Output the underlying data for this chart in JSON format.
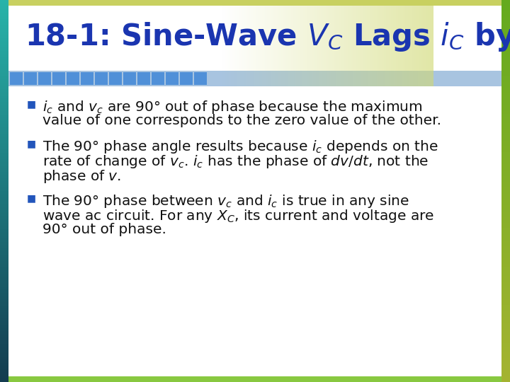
{
  "title_color": "#1a35b0",
  "title_fontsize": 30,
  "body_fontsize": 14.5,
  "body_color": "#111111",
  "bullet_char": "■",
  "bullet_color": "#2255bb",
  "bg_white": "#ffffff",
  "title_area_color": "#ffffff",
  "left_border_top": "#1a6080",
  "left_border_mid": "#20a0b0",
  "left_border_bot": "#30c8b8",
  "right_border_top": "#c8d870",
  "right_border_bot": "#88c840",
  "stripe_blue": "#5090d8",
  "stripe_bg": "#9ab8d8",
  "header_gradient_right": "#d8dc80",
  "top_bar_color": "#c8d060",
  "bottom_bar_color": "#88c840"
}
